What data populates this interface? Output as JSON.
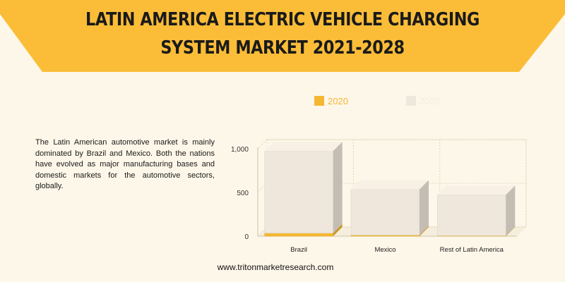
{
  "header": {
    "title": "LATIN AMERICA ELECTRIC VEHICLE CHARGING SYSTEM MARKET 2021-2028"
  },
  "description": "The Latin American automotive market is mainly dominated by Brazil and Mexico. Both the nations have evolved as major manufacturing bases and domestic markets for the automotive sectors, globally.",
  "footer": {
    "url": "www.tritonmarketresearch.com"
  },
  "colors": {
    "banner": "#fbbd38",
    "background": "#fdf7e9",
    "series_2020": "#f4b731",
    "series_2028": "#efe7dc"
  },
  "chart_data": {
    "type": "bar",
    "categories": [
      "Brazil",
      "Mexico",
      "Rest of Latin America"
    ],
    "series": [
      {
        "name": "2020",
        "values": [
          35,
          12,
          5
        ]
      },
      {
        "name": "2028",
        "values": [
          940,
          525,
          470
        ]
      }
    ],
    "stacked": true,
    "ylim": [
      0,
      1000
    ],
    "yticks": [
      "1,000",
      "500",
      "0"
    ],
    "grid": true,
    "legend_position": "top"
  }
}
